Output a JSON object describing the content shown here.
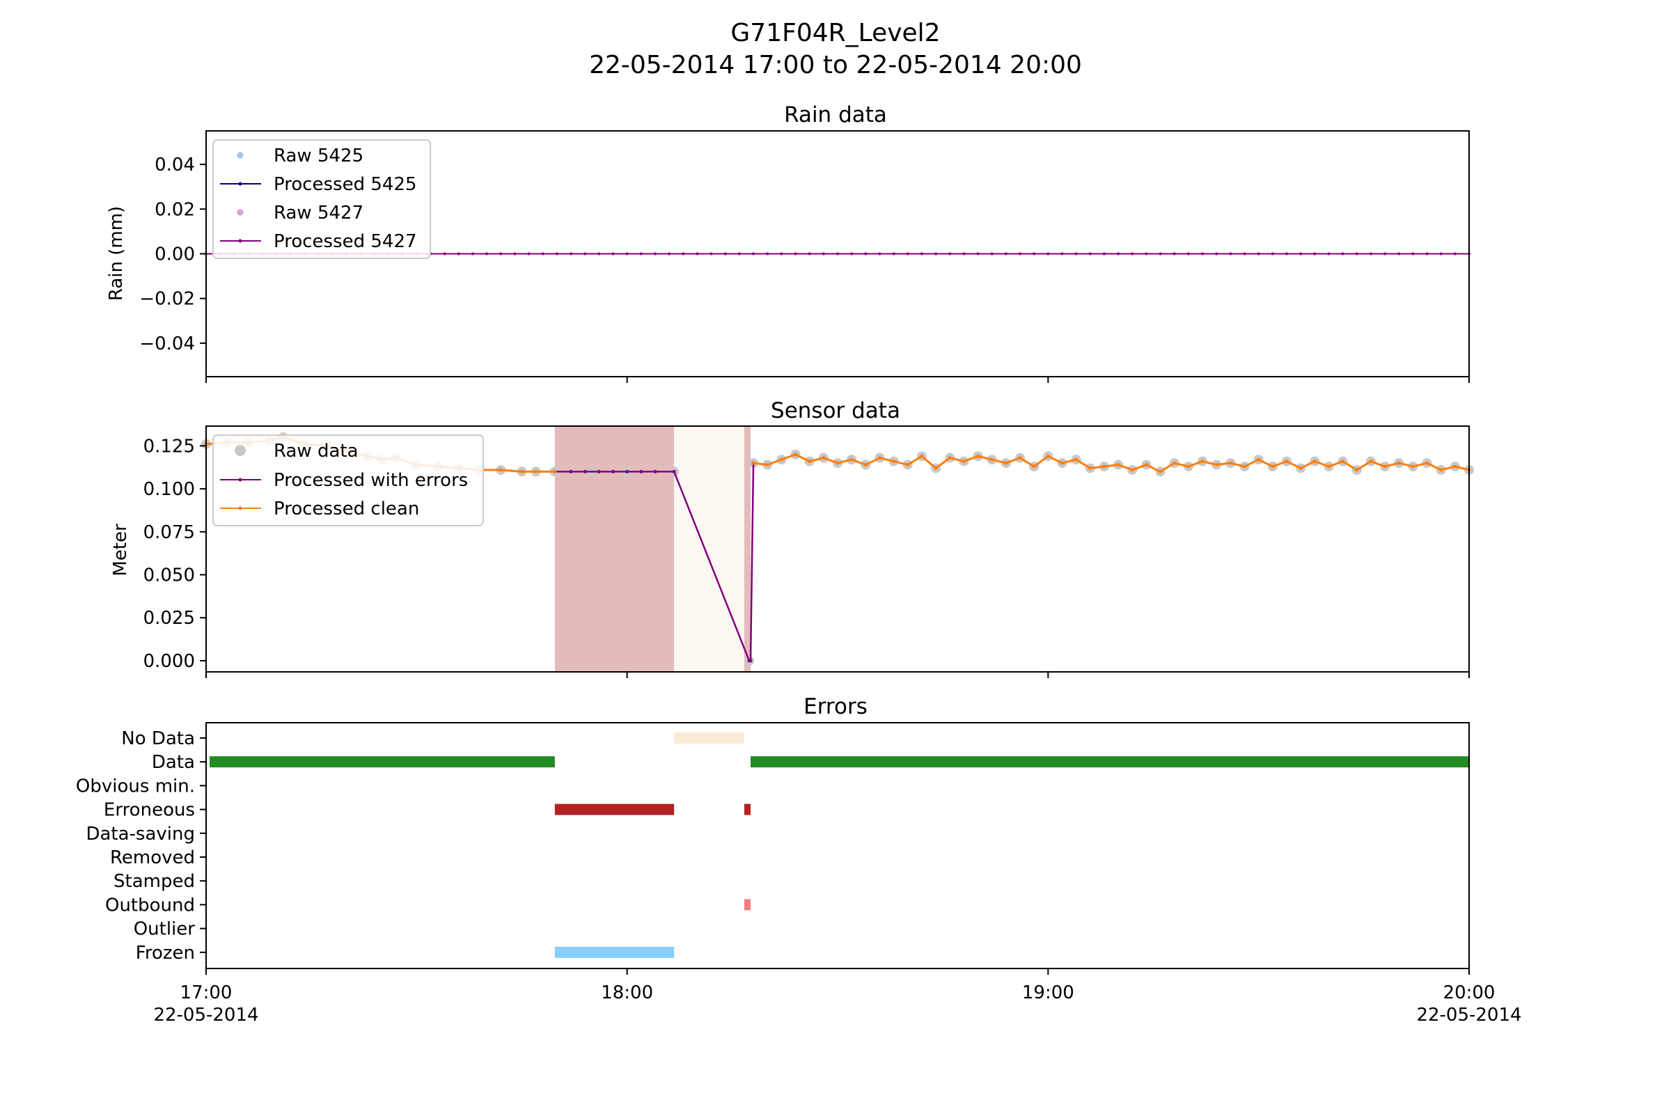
{
  "figure": {
    "title_line1": "G71F04R_Level2",
    "title_line2": "22-05-2014 17:00 to 22-05-2014 20:00"
  },
  "x_axis": {
    "range": [
      "17:00",
      "20:00"
    ],
    "ticks": [
      {
        "time": "17:00",
        "minutes": 0,
        "label": "17:00",
        "sublabel": "22-05-2014"
      },
      {
        "time": "18:00",
        "minutes": 60,
        "label": "18:00",
        "sublabel": ""
      },
      {
        "time": "19:00",
        "minutes": 120,
        "label": "19:00",
        "sublabel": ""
      },
      {
        "time": "20:00",
        "minutes": 180,
        "label": "20:00",
        "sublabel": "22-05-2014"
      }
    ]
  },
  "colors": {
    "raw_5425": "#aac4f0",
    "processed_5425": "#000080",
    "raw_5427": "#dda0dd",
    "processed_5427": "#800080",
    "raw_data": "#c8c8c8",
    "processed_errors": "#800080",
    "processed_clean": "#ff7f0e",
    "no_data": "#faebd7",
    "data": "#228b22",
    "erroneous": "#b22222",
    "outbound": "#f08080",
    "frozen": "#87cefa",
    "span_erroneous": "#e4bbbb",
    "span_no_data": "#fdf8f2"
  },
  "chart_data": [
    {
      "type": "line",
      "title": "Rain data",
      "ylabel": "Rain (mm)",
      "ylim": [
        -0.055,
        0.055
      ],
      "yticks": [
        "0.04",
        "0.02",
        "0.00",
        "−0.02",
        "−0.04"
      ],
      "ytick_values": [
        0.04,
        0.02,
        0.0,
        -0.02,
        -0.04
      ],
      "legend_position": "upper-left",
      "x_interval_minutes": 2,
      "series": [
        {
          "name": "Raw 5425",
          "style": "markers",
          "value_constant": 0.0
        },
        {
          "name": "Processed 5425",
          "style": "line",
          "value_constant": 0.0
        },
        {
          "name": "Raw 5427",
          "style": "markers",
          "value_constant": 0.0
        },
        {
          "name": "Processed 5427",
          "style": "line",
          "value_constant": 0.0
        }
      ]
    },
    {
      "type": "line",
      "title": "Sensor data",
      "ylabel": "Meter",
      "ylim": [
        -0.0065,
        0.1365
      ],
      "yticks": [
        "0.125",
        "0.100",
        "0.075",
        "0.050",
        "0.025",
        "0.000"
      ],
      "ytick_values": [
        0.125,
        0.1,
        0.075,
        0.05,
        0.025,
        0.0
      ],
      "legend_position": "upper-left",
      "shaded_spans": [
        {
          "status": "Erroneous",
          "start_min": 49.7,
          "end_min": 66.7
        },
        {
          "status": "No Data",
          "start_min": 66.7,
          "end_min": 76.7
        },
        {
          "status": "Erroneous",
          "start_min": 76.7,
          "end_min": 77.6
        }
      ],
      "series": [
        {
          "name": "Raw data",
          "style": "markers",
          "points": [
            [
              0,
              0.126
            ],
            [
              3,
              0.127
            ],
            [
              6,
              0.127
            ],
            [
              9,
              0.128
            ],
            [
              11,
              0.13
            ],
            [
              14,
              0.126
            ],
            [
              17,
              0.125
            ],
            [
              20,
              0.122
            ],
            [
              23,
              0.119
            ],
            [
              25,
              0.117
            ],
            [
              27,
              0.118
            ],
            [
              30,
              0.114
            ],
            [
              33,
              0.113
            ],
            [
              36,
              0.112
            ],
            [
              39,
              0.111
            ],
            [
              42,
              0.111
            ],
            [
              45,
              0.11
            ],
            [
              47,
              0.11
            ],
            [
              49.7,
              0.11
            ],
            [
              55,
              0.11
            ],
            [
              60,
              0.11
            ],
            [
              66.7,
              0.11
            ],
            [
              77.4,
              0.0
            ],
            [
              78,
              0.115
            ],
            [
              80,
              0.114
            ],
            [
              82,
              0.117
            ],
            [
              84,
              0.12
            ],
            [
              86,
              0.116
            ],
            [
              88,
              0.118
            ],
            [
              90,
              0.115
            ],
            [
              92,
              0.117
            ],
            [
              94,
              0.114
            ],
            [
              96,
              0.118
            ],
            [
              98,
              0.116
            ],
            [
              100,
              0.114
            ],
            [
              102,
              0.119
            ],
            [
              104,
              0.112
            ],
            [
              106,
              0.118
            ],
            [
              108,
              0.116
            ],
            [
              110,
              0.119
            ],
            [
              112,
              0.117
            ],
            [
              114,
              0.115
            ],
            [
              116,
              0.118
            ],
            [
              118,
              0.113
            ],
            [
              120,
              0.119
            ],
            [
              122,
              0.115
            ],
            [
              124,
              0.117
            ],
            [
              126,
              0.112
            ],
            [
              128,
              0.113
            ],
            [
              130,
              0.114
            ],
            [
              132,
              0.111
            ],
            [
              134,
              0.114
            ],
            [
              136,
              0.11
            ],
            [
              138,
              0.115
            ],
            [
              140,
              0.113
            ],
            [
              142,
              0.116
            ],
            [
              144,
              0.114
            ],
            [
              146,
              0.115
            ],
            [
              148,
              0.113
            ],
            [
              150,
              0.117
            ],
            [
              152,
              0.113
            ],
            [
              154,
              0.116
            ],
            [
              156,
              0.112
            ],
            [
              158,
              0.116
            ],
            [
              160,
              0.113
            ],
            [
              162,
              0.116
            ],
            [
              164,
              0.111
            ],
            [
              166,
              0.116
            ],
            [
              168,
              0.113
            ],
            [
              170,
              0.115
            ],
            [
              172,
              0.113
            ],
            [
              174,
              0.115
            ],
            [
              176,
              0.111
            ],
            [
              178,
              0.113
            ],
            [
              180,
              0.111
            ]
          ]
        },
        {
          "name": "Processed with errors",
          "style": "line",
          "points": [
            [
              49.7,
              0.11
            ],
            [
              52,
              0.11
            ],
            [
              54,
              0.11
            ],
            [
              56,
              0.11
            ],
            [
              58,
              0.11
            ],
            [
              60,
              0.11
            ],
            [
              62,
              0.11
            ],
            [
              64,
              0.11
            ],
            [
              66.7,
              0.11
            ],
            [
              77.4,
              0.0
            ],
            [
              77.6,
              0.0
            ],
            [
              78,
              0.115
            ]
          ]
        },
        {
          "name": "Processed clean",
          "style": "line",
          "points": [
            [
              0,
              0.126
            ],
            [
              3,
              0.127
            ],
            [
              6,
              0.127
            ],
            [
              9,
              0.128
            ],
            [
              11,
              0.13
            ],
            [
              14,
              0.126
            ],
            [
              17,
              0.125
            ],
            [
              20,
              0.122
            ],
            [
              23,
              0.119
            ],
            [
              25,
              0.117
            ],
            [
              27,
              0.118
            ],
            [
              30,
              0.114
            ],
            [
              33,
              0.113
            ],
            [
              36,
              0.112
            ],
            [
              39,
              0.111
            ],
            [
              42,
              0.111
            ],
            [
              45,
              0.11
            ],
            [
              47,
              0.11
            ],
            [
              49.7,
              0.11
            ],
            [
              78,
              0.115
            ],
            [
              80,
              0.114
            ],
            [
              82,
              0.117
            ],
            [
              84,
              0.12
            ],
            [
              86,
              0.116
            ],
            [
              88,
              0.118
            ],
            [
              90,
              0.115
            ],
            [
              92,
              0.117
            ],
            [
              94,
              0.114
            ],
            [
              96,
              0.118
            ],
            [
              98,
              0.116
            ],
            [
              100,
              0.114
            ],
            [
              102,
              0.119
            ],
            [
              104,
              0.112
            ],
            [
              106,
              0.118
            ],
            [
              108,
              0.116
            ],
            [
              110,
              0.119
            ],
            [
              112,
              0.117
            ],
            [
              114,
              0.115
            ],
            [
              116,
              0.118
            ],
            [
              118,
              0.113
            ],
            [
              120,
              0.119
            ],
            [
              122,
              0.115
            ],
            [
              124,
              0.117
            ],
            [
              126,
              0.112
            ],
            [
              128,
              0.113
            ],
            [
              130,
              0.114
            ],
            [
              132,
              0.111
            ],
            [
              134,
              0.114
            ],
            [
              136,
              0.11
            ],
            [
              138,
              0.115
            ],
            [
              140,
              0.113
            ],
            [
              142,
              0.116
            ],
            [
              144,
              0.114
            ],
            [
              146,
              0.115
            ],
            [
              148,
              0.113
            ],
            [
              150,
              0.117
            ],
            [
              152,
              0.113
            ],
            [
              154,
              0.116
            ],
            [
              156,
              0.112
            ],
            [
              158,
              0.116
            ],
            [
              160,
              0.113
            ],
            [
              162,
              0.116
            ],
            [
              164,
              0.111
            ],
            [
              166,
              0.116
            ],
            [
              168,
              0.113
            ],
            [
              170,
              0.115
            ],
            [
              172,
              0.113
            ],
            [
              174,
              0.115
            ],
            [
              176,
              0.111
            ],
            [
              178,
              0.113
            ],
            [
              180,
              0.111
            ]
          ]
        }
      ]
    },
    {
      "type": "bar",
      "title": "Errors",
      "categories": [
        "No Data",
        "Data",
        "Obvious min.",
        "Erroneous",
        "Data-saving",
        "Removed",
        "Stamped",
        "Outbound",
        "Outlier",
        "Frozen"
      ],
      "intervals": [
        {
          "category": "No Data",
          "start_min": 66.7,
          "end_min": 76.7,
          "color_key": "no_data"
        },
        {
          "category": "Data",
          "start_min": 0.5,
          "end_min": 49.7,
          "color_key": "data"
        },
        {
          "category": "Data",
          "start_min": 77.6,
          "end_min": 180,
          "color_key": "data"
        },
        {
          "category": "Erroneous",
          "start_min": 49.7,
          "end_min": 66.7,
          "color_key": "erroneous"
        },
        {
          "category": "Erroneous",
          "start_min": 76.7,
          "end_min": 77.6,
          "color_key": "erroneous"
        },
        {
          "category": "Outbound",
          "start_min": 76.7,
          "end_min": 77.6,
          "color_key": "outbound"
        },
        {
          "category": "Frozen",
          "start_min": 49.7,
          "end_min": 66.7,
          "color_key": "frozen"
        }
      ]
    }
  ]
}
